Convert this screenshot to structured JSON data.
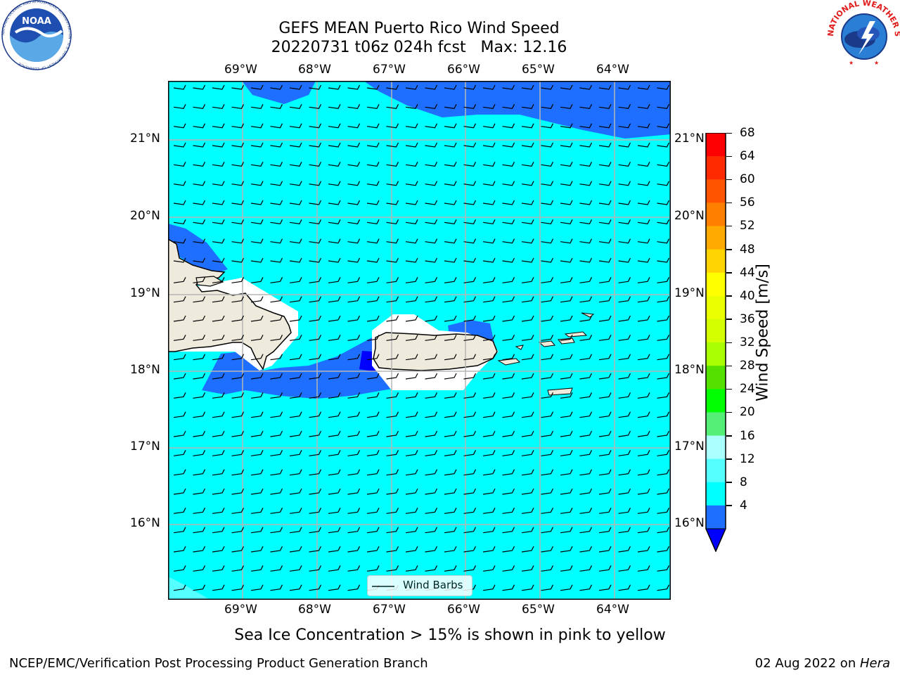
{
  "header": {
    "title_line1": "GEFS MEAN Puerto Rico Wind Speed",
    "title_line2": "20220731 t06z 024h fcst   Max: 12.16"
  },
  "logos": {
    "left": {
      "text": "NOAA",
      "ring_text": "NATIONAL OCEANIC AND ATMOSPHERIC ADMINISTRATION · U.S. DEPARTMENT OF COMMERCE"
    },
    "right": {
      "ring_text": "NATIONAL WEATHER SERVICE"
    }
  },
  "map": {
    "lon_labels": [
      "69°W",
      "68°W",
      "67°W",
      "66°W",
      "65°W",
      "64°W"
    ],
    "lat_labels": [
      "21°N",
      "20°N",
      "19°N",
      "18°N",
      "17°N",
      "16°N"
    ],
    "legend_label": "Wind Barbs"
  },
  "colorbar": {
    "label": "Wind Speed [m/s]",
    "ticks": [
      "68",
      "64",
      "60",
      "56",
      "52",
      "48",
      "44",
      "40",
      "36",
      "32",
      "28",
      "24",
      "20",
      "16",
      "12",
      "8",
      "4"
    ],
    "colors": [
      "#ff0000",
      "#ff2a00",
      "#ff5500",
      "#ff8000",
      "#ffaa00",
      "#ffd400",
      "#ffff00",
      "#eaff00",
      "#d4ff00",
      "#aaff00",
      "#55e000",
      "#00ff00",
      "#55ee77",
      "#aaffff",
      "#55ffff",
      "#00ffff",
      "#1e6eff"
    ],
    "extend_color": "#0000ff"
  },
  "caption": "Sea Ice Concentration > 15% is shown in pink to yellow",
  "footer": {
    "left": "NCEP/EMC/Verification Post Processing Product Generation Branch",
    "right_prefix": "02 Aug 2022 on ",
    "right_host": "Hera"
  }
}
